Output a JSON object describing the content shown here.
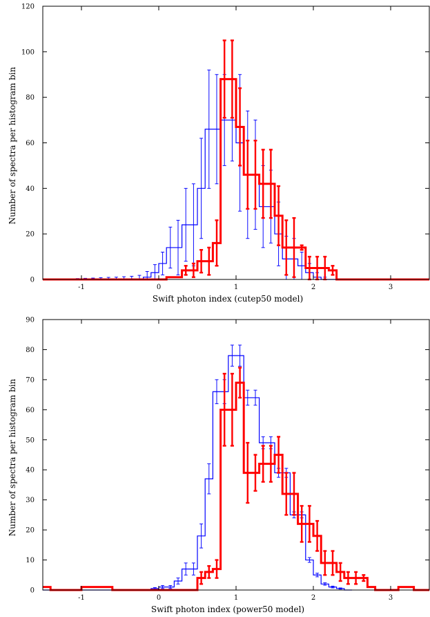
{
  "chart_data": [
    {
      "type": "histogram",
      "xlabel": "Swift photon index (cutep50 model)",
      "ylabel": "Number of spectra per histogram bin",
      "xlim": [
        -1.5,
        3.5
      ],
      "ylim": [
        0,
        120
      ],
      "xticks": [
        -1,
        0,
        1,
        2,
        3
      ],
      "yticks": [
        0,
        20,
        40,
        60,
        80,
        100,
        120
      ],
      "bin_width": 0.1,
      "grid": false,
      "series": [
        {
          "color": "#0000ff",
          "x": [
            -1.45,
            -1.35,
            -1.25,
            -1.15,
            -1.05,
            -0.95,
            -0.85,
            -0.75,
            -0.65,
            -0.55,
            -0.45,
            -0.35,
            -0.25,
            -0.15,
            -0.05,
            0.05,
            0.15,
            0.25,
            0.35,
            0.45,
            0.55,
            0.65,
            0.75,
            0.85,
            0.95,
            1.05,
            1.15,
            1.25,
            1.35,
            1.45,
            1.55,
            1.65,
            1.75,
            1.85,
            1.95,
            2.05,
            2.15,
            2.25,
            2.35,
            2.45
          ],
          "values": [
            0,
            0,
            0,
            0,
            0,
            0,
            0,
            0,
            0,
            0,
            0,
            0,
            0,
            1,
            3,
            7,
            14,
            14,
            24,
            24,
            40,
            66,
            66,
            70,
            70,
            60,
            46,
            46,
            32,
            32,
            20,
            9,
            9,
            6,
            3,
            1,
            0,
            0,
            0,
            0
          ],
          "errors": [
            0,
            0,
            0,
            0,
            0.4,
            0.5,
            0.6,
            0.8,
            0.9,
            1.0,
            1.2,
            1.4,
            1.8,
            2.5,
            3.5,
            5,
            9,
            12,
            16,
            18,
            22,
            26,
            24,
            20,
            18,
            30,
            28,
            24,
            18,
            16,
            14,
            10,
            9,
            6,
            4,
            2,
            1,
            0,
            0,
            0
          ]
        },
        {
          "color": "#ff0000",
          "x": [
            -1.45,
            -1.35,
            -1.25,
            -1.15,
            -1.05,
            -0.95,
            -0.85,
            -0.75,
            -0.65,
            -0.55,
            -0.45,
            -0.35,
            -0.25,
            -0.15,
            -0.05,
            0.05,
            0.15,
            0.25,
            0.35,
            0.45,
            0.55,
            0.65,
            0.75,
            0.85,
            0.95,
            1.05,
            1.15,
            1.25,
            1.35,
            1.45,
            1.55,
            1.65,
            1.75,
            1.85,
            1.95,
            2.05,
            2.15,
            2.25,
            2.35,
            2.45,
            2.55,
            2.65,
            2.75,
            2.85,
            2.95,
            3.05,
            3.15,
            3.25,
            3.35,
            3.45
          ],
          "values": [
            0,
            0,
            0,
            0,
            0,
            0,
            0,
            0,
            0,
            0,
            0,
            0,
            0,
            0,
            0,
            0,
            1,
            1,
            4,
            4,
            8,
            8,
            16,
            88,
            88,
            67,
            46,
            46,
            42,
            42,
            28,
            14,
            14,
            14,
            5,
            5,
            5,
            4,
            0,
            0,
            0,
            0,
            0,
            0,
            0,
            0,
            0,
            0,
            0,
            0
          ],
          "errors": [
            0,
            0,
            0,
            0,
            0,
            0,
            0,
            0,
            0,
            0,
            0,
            0,
            0,
            0,
            0,
            0,
            0,
            0,
            2,
            3,
            5,
            6,
            10,
            17,
            17,
            17,
            15,
            15,
            15,
            15,
            13,
            12,
            13,
            1,
            5,
            5,
            5,
            2,
            0,
            0,
            0,
            0,
            0,
            0,
            0,
            0,
            0,
            0,
            0,
            0
          ]
        }
      ]
    },
    {
      "type": "histogram",
      "xlabel": "Swift photon index (power50 model)",
      "ylabel": "Number of spectra per histogram bin",
      "xlim": [
        -1.5,
        3.5
      ],
      "ylim": [
        0,
        90
      ],
      "xticks": [
        -1,
        0,
        1,
        2,
        3
      ],
      "yticks": [
        0,
        10,
        20,
        30,
        40,
        50,
        60,
        70,
        80,
        90
      ],
      "bin_width": 0.1,
      "grid": false,
      "series": [
        {
          "color": "#0000ff",
          "x": [
            -1.45,
            -1.35,
            -1.25,
            -1.15,
            -1.05,
            -0.95,
            -0.85,
            -0.75,
            -0.65,
            -0.55,
            -0.45,
            -0.35,
            -0.25,
            -0.15,
            -0.05,
            0.05,
            0.15,
            0.25,
            0.35,
            0.45,
            0.55,
            0.65,
            0.75,
            0.85,
            0.95,
            1.05,
            1.15,
            1.25,
            1.35,
            1.45,
            1.55,
            1.65,
            1.75,
            1.85,
            1.95,
            2.05,
            2.15,
            2.25,
            2.35,
            2.45
          ],
          "values": [
            0,
            0,
            0,
            0,
            0,
            0,
            0,
            0,
            0,
            0,
            0,
            0,
            0,
            0,
            0.5,
            1,
            1,
            3,
            7,
            7,
            18,
            37,
            66,
            66,
            78,
            78,
            64,
            64,
            49,
            49,
            39,
            39,
            25,
            25,
            10,
            5,
            2,
            1,
            0.5,
            0
          ],
          "errors": [
            0,
            0,
            0,
            0,
            0,
            0,
            0,
            0,
            0,
            0,
            0,
            0,
            0,
            0,
            0.3,
            0.5,
            0.5,
            1,
            2,
            2,
            4,
            5,
            4,
            4,
            3.5,
            3.5,
            2.5,
            2.5,
            2,
            2,
            1.5,
            1.5,
            1,
            1,
            0.8,
            0.6,
            0.4,
            0.3,
            0.2,
            0
          ]
        },
        {
          "color": "#ff0000",
          "x": [
            -1.45,
            -1.35,
            -1.25,
            -1.15,
            -1.05,
            -0.95,
            -0.85,
            -0.75,
            -0.65,
            -0.55,
            -0.45,
            -0.35,
            -0.25,
            -0.15,
            -0.05,
            0.05,
            0.15,
            0.25,
            0.35,
            0.45,
            0.55,
            0.65,
            0.75,
            0.85,
            0.95,
            1.05,
            1.15,
            1.25,
            1.35,
            1.45,
            1.55,
            1.65,
            1.75,
            1.85,
            1.95,
            2.05,
            2.15,
            2.25,
            2.35,
            2.45,
            2.55,
            2.65,
            2.75,
            2.85,
            2.95,
            3.05,
            3.15,
            3.25,
            3.35,
            3.45
          ],
          "values": [
            1,
            0,
            0,
            0,
            0,
            1,
            1,
            1,
            1,
            0,
            0,
            0,
            0,
            0,
            0,
            0,
            0,
            0,
            0,
            0,
            4,
            6,
            7,
            60,
            60,
            69,
            39,
            39,
            42,
            42,
            45,
            32,
            32,
            22,
            22,
            18,
            9,
            9,
            6,
            4,
            4,
            4,
            1,
            0,
            0,
            0,
            1,
            1,
            0,
            0
          ],
          "errors": [
            0,
            0,
            0,
            0,
            0,
            0,
            0,
            0,
            0,
            0,
            0,
            0,
            0,
            0,
            0,
            0,
            0,
            0,
            0,
            0,
            2,
            2,
            3,
            12,
            12,
            5,
            10,
            6,
            6,
            6,
            6,
            7,
            7,
            6,
            6,
            5,
            4,
            4,
            3,
            2,
            2,
            1,
            0,
            0,
            0,
            0,
            0,
            0,
            0,
            0
          ]
        }
      ]
    }
  ]
}
